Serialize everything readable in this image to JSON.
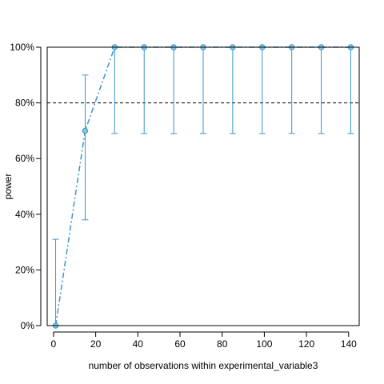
{
  "chart_data": {
    "type": "line",
    "title": "",
    "xlabel": "number of observations within experimental_variable3",
    "ylabel": "power",
    "xlim": [
      -3,
      145
    ],
    "ylim": [
      0,
      1
    ],
    "x_ticks": [
      0,
      20,
      40,
      60,
      80,
      100,
      120,
      140
    ],
    "x_tick_labels": [
      "0",
      "20",
      "40",
      "60",
      "80",
      "100",
      "120",
      "140"
    ],
    "y_ticks": [
      0,
      0.2,
      0.4,
      0.6,
      0.8,
      1.0
    ],
    "y_tick_labels": [
      "0%",
      "20%",
      "40%",
      "60%",
      "80%",
      "100%"
    ],
    "reference_line": {
      "y": 0.8,
      "style": "dashed",
      "color": "#000000"
    },
    "grid": false,
    "series": [
      {
        "color": "#3b96c8",
        "marker_fill": "#88c6e6",
        "line_style": "dash-dot",
        "x": [
          1,
          15,
          29,
          43,
          57,
          71,
          85,
          99,
          113,
          127,
          141
        ],
        "values": [
          0.0,
          0.7,
          1.0,
          1.0,
          1.0,
          1.0,
          1.0,
          1.0,
          1.0,
          1.0,
          1.0
        ],
        "ci_lower": [
          0.0,
          0.38,
          0.69,
          0.69,
          0.69,
          0.69,
          0.69,
          0.69,
          0.69,
          0.69,
          0.69
        ],
        "ci_upper": [
          0.31,
          0.9,
          1.0,
          1.0,
          1.0,
          1.0,
          1.0,
          1.0,
          1.0,
          1.0,
          1.0
        ]
      }
    ]
  }
}
